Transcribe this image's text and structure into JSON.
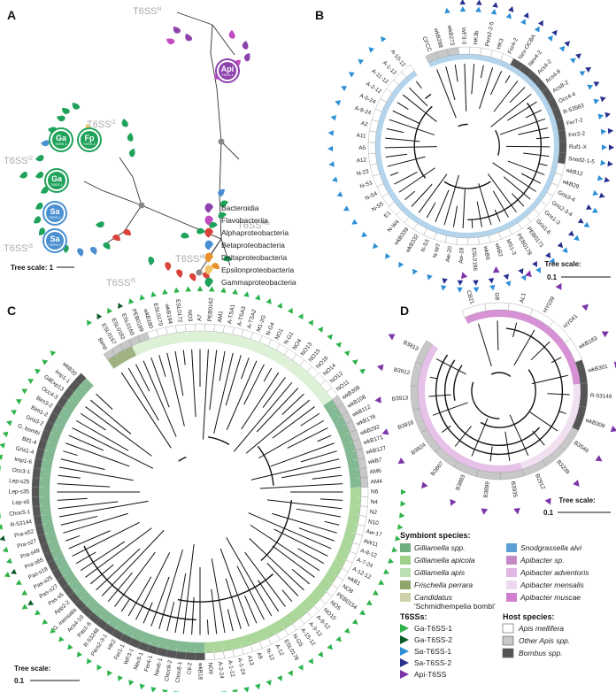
{
  "panels": {
    "A": {
      "letter": "A",
      "t6ss_labels": [
        "T6SS",
        "T6SS",
        "T6SS",
        "T6SS",
        "T6SS",
        "T6SS",
        "T6SS"
      ],
      "t6ss_sups": [
        "iii",
        "i1",
        "i2",
        "i4b",
        "i3",
        "i4a",
        "i5"
      ],
      "badges": [
        {
          "label": "Api",
          "sub": "T6SS-1"
        },
        {
          "label": "Ga",
          "sub": "T6SS-3"
        },
        {
          "label": "Fp",
          "sub": "T6SS-2"
        },
        {
          "label": "Ga",
          "sub": "T6SS-1"
        },
        {
          "label": "Sa",
          "sub": "T6SS-1"
        },
        {
          "label": "Sa",
          "sub": "T6SS-2"
        }
      ],
      "legend": [
        {
          "name": "Bacteroidia",
          "color": "#8e44ad"
        },
        {
          "name": "Flavobacteriia",
          "color": "#c04cbf"
        },
        {
          "name": "Alphaproteobacteria",
          "color": "#d9443a"
        },
        {
          "name": "Betaproteobacteria",
          "color": "#4a90d0"
        },
        {
          "name": "Deltaproteobacteria",
          "color": "#e8922e"
        },
        {
          "name": "Epsilonproteobacteria",
          "color": "#f2c46a"
        },
        {
          "name": "Gammaproteobacteria",
          "color": "#1fa25a"
        }
      ],
      "tree_scale_label": "Tree scale: 1"
    },
    "B": {
      "letter": "B",
      "leaves": [
        "CFCC",
        "wkB298",
        "wkB273",
        "WF3-3",
        "HK3b",
        "Pers2-2-5",
        "HK3",
        "Fer4-2",
        "Nev-OCBA",
        "Nev4-2",
        "Acs4-2",
        "Acs4-8",
        "Acs8-2",
        "Occ4-4",
        "R-53583",
        "Fer7-2",
        "Fer2-2",
        "Ruf1-X",
        "Snod2-1-5",
        "wkB12",
        "wkB29",
        "Gris3-4",
        "Gris2-3-4",
        "Gris1-3",
        "Gris1-6",
        "PEB0171",
        "PEB0178",
        "MS1-3",
        "wkB2",
        "wkB9",
        "ESL0186",
        "Aw-18",
        "Aw-20",
        "N-W7",
        "N-S3",
        "wkB332",
        "wkB339",
        "N-W4",
        "E1",
        "N-S5",
        "N-S4",
        "N-S1",
        "N-23",
        "A12",
        "A5",
        "A11",
        "A2",
        "A-9-24",
        "A-5-24",
        "A-2-12",
        "A-11-12",
        "A-1-12",
        "A-10-12"
      ],
      "tree_scale_title": "Tree scale:",
      "tree_scale_value": "0.1"
    },
    "C": {
      "letter": "C",
      "leaves": [
        "Bimp",
        "ESL0167",
        "ESL0182",
        "ESL0169",
        "PEB0189",
        "wkB180",
        "ESL0170",
        "wkB194",
        "ESL0172",
        "NO3",
        "A7",
        "PEB0162",
        "AM1",
        "A-TSA1",
        "A-TSA3",
        "A-TSA2",
        "M1-2G",
        "N-G4",
        "NO1",
        "N-G1",
        "NO4",
        "NO13",
        "NO15",
        "NO16",
        "NO14",
        "NO12",
        "NO11",
        "wkB308",
        "wkB108",
        "wkB112",
        "wkB178",
        "wkB292",
        "wkB171",
        "wkB127",
        "wkB7",
        "AM6",
        "AM4",
        "N6",
        "N4",
        "N2",
        "N10",
        "Aw-17",
        "AW11",
        "A-8-12",
        "A-7-24",
        "A-12-12",
        "wkB1",
        "NO8",
        "PEB0154",
        "NO5",
        "NO10",
        "A-9-12",
        "A-3-12",
        "A-15-12",
        "N-G5",
        "ESL0178",
        "A-12",
        "N-12",
        "A9",
        "A13",
        "A-1-24",
        "A-1-12",
        "A-2-24",
        "NO9",
        "wkB18",
        "Ctl-2",
        "Choc8-1",
        "Choc8-2",
        "Nev6-1",
        "Fer4-1",
        "Nev3-1",
        "WF3-1",
        "Fer1-1",
        "HK2",
        "Pers2-3-1",
        "R-53248",
        "Pas1-6",
        "Acs4-10",
        "G. mensalis",
        "App2-2",
        "Pas-s5",
        "Pas-s27",
        "Pas-s25",
        "Pas-s18",
        "Pra-s65",
        "Pra-s49",
        "Pra-s27",
        "Pra-s52",
        "R-53144",
        "Choc5-1",
        "Lep-s5",
        "Lep-s35",
        "Lep-s25",
        "Occ3-1",
        "Imp1-6",
        "Gris1-4",
        "Bif1-4",
        "G. bombi",
        "Gris3-2",
        "Bim1-2",
        "Bim3-2",
        "Occ4-3",
        "GilExp13",
        "Imp1-1",
        "wkB30"
      ],
      "tree_scale_title": "Tree scale:",
      "tree_scale_value": "0.1"
    },
    "D": {
      "letter": "D",
      "leaves": [
        "CB21",
        "G8",
        "AL1",
        "HY039",
        "HY041",
        "wkB183",
        "wkB301",
        "R-53146",
        "wkB309",
        "B3546",
        "B3239",
        "B2912",
        "B3935",
        "B3899",
        "B3883",
        "B3867",
        "B3924",
        "B3918",
        "B3913",
        "B3912",
        "B3813"
      ],
      "tree_scale_title": "Tree scale:",
      "tree_scale_value": "0.1"
    }
  },
  "legend_symbionts": {
    "title": "Symbiont species:",
    "items": [
      {
        "name": "Gilliamella spp.",
        "color": "#6fae80"
      },
      {
        "name": "Gilliamella apicola",
        "color": "#9ed08a"
      },
      {
        "name": "Gilliamella apis",
        "color": "#b9dfb2"
      },
      {
        "name": "Frischella perrara",
        "color": "#8fa56c"
      },
      {
        "name": "Candidatus",
        "name2": "'Schmidhempelia bombi'",
        "color": "#cfcfa8"
      },
      {
        "name": "Snodgrassella alvi",
        "color": "#5aa0d4"
      },
      {
        "name": "Apibacter sp.",
        "color": "#c38ac6"
      },
      {
        "name": "Apibacter adventoris",
        "color": "#e2b6e4"
      },
      {
        "name": "Apibacter mensalis",
        "color": "#eed9f0"
      },
      {
        "name": "Apibacter muscae",
        "color": "#cf7fce"
      }
    ]
  },
  "legend_t6ss": {
    "title": "T6SSs:",
    "items": [
      {
        "name": "Ga-T6SS-1",
        "color": "#2db34a"
      },
      {
        "name": "Ga-T6SS-2",
        "color": "#0f5a2a"
      },
      {
        "name": "Sa-T6SS-1",
        "color": "#2c8fd6"
      },
      {
        "name": "Sa-T6SS-2",
        "color": "#28308f"
      },
      {
        "name": "Api-T6SS",
        "color": "#7b35a8"
      }
    ]
  },
  "legend_host": {
    "title": "Host species:",
    "items": [
      {
        "name": "Apis mellifera",
        "color": "#ffffff"
      },
      {
        "name": "Other Apis spp.",
        "color": "#c8c8c8"
      },
      {
        "name": "Bombus spp.",
        "color": "#555555"
      }
    ]
  }
}
